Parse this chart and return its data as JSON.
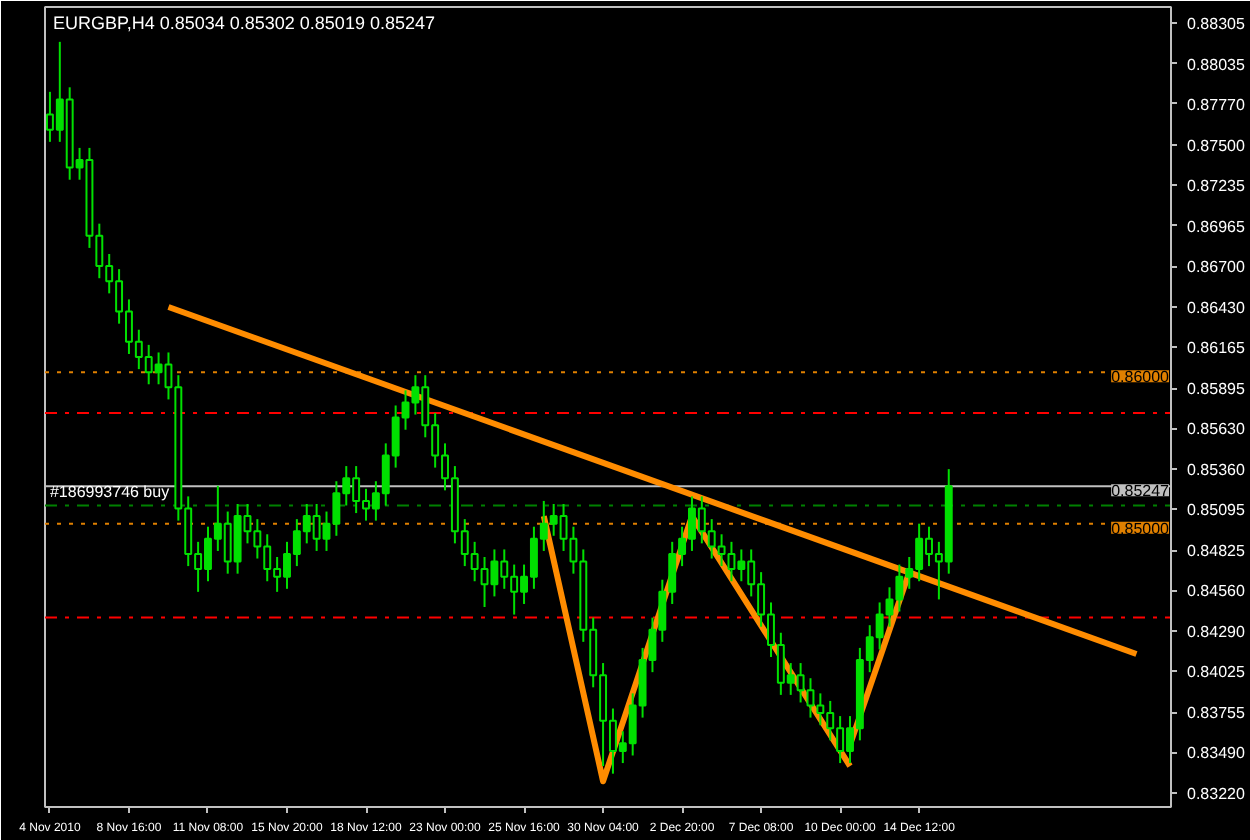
{
  "chart_data": {
    "type": "candlestick",
    "title": "EURGBP,H4  0.85034 0.85302 0.85019 0.85247",
    "color": "#00e000",
    "categories": [
      "4 Nov 2010",
      null,
      null,
      null,
      null,
      null,
      null,
      null,
      "8 Nov 16:00",
      null,
      null,
      null,
      null,
      null,
      null,
      null,
      "11 Nov 08:00",
      null,
      null,
      null,
      null,
      null,
      null,
      null,
      "15 Nov 20:00",
      null,
      null,
      null,
      null,
      null,
      null,
      null,
      "18 Nov 12:00",
      null,
      null,
      null,
      null,
      null,
      null,
      null,
      "23 Nov 00:00",
      null,
      null,
      null,
      null,
      null,
      null,
      null,
      "25 Nov 16:00",
      null,
      null,
      null,
      null,
      null,
      null,
      null,
      "30 Nov 04:00",
      null,
      null,
      null,
      null,
      null,
      null,
      null,
      "2 Dec 20:00",
      null,
      null,
      null,
      null,
      null,
      null,
      null,
      "7 Dec 08:00",
      null,
      null,
      null,
      null,
      null,
      null,
      null,
      "10 Dec 00:00",
      null,
      null,
      null,
      null,
      null,
      null,
      null,
      "14 Dec 12:00",
      null,
      null,
      null,
      null,
      null,
      null,
      null,
      null,
      null,
      null,
      null,
      null,
      null,
      null,
      null,
      null,
      null,
      null,
      null,
      null,
      null,
      null,
      null,
      null,
      null
    ],
    "ohlc": [
      [
        0.877,
        0.8785,
        0.8752,
        0.876
      ],
      [
        0.876,
        0.8818,
        0.8752,
        0.878
      ],
      [
        0.878,
        0.8788,
        0.8727,
        0.8735
      ],
      [
        0.8735,
        0.8748,
        0.8727,
        0.874
      ],
      [
        0.874,
        0.8748,
        0.8682,
        0.869
      ],
      [
        0.869,
        0.8698,
        0.8662,
        0.867
      ],
      [
        0.867,
        0.8678,
        0.8652,
        0.866
      ],
      [
        0.866,
        0.8668,
        0.8632,
        0.864
      ],
      [
        0.864,
        0.8648,
        0.8612,
        0.862
      ],
      [
        0.862,
        0.8628,
        0.8602,
        0.861
      ],
      [
        0.861,
        0.8618,
        0.8592,
        0.86
      ],
      [
        0.86,
        0.8613,
        0.8592,
        0.8605
      ],
      [
        0.8605,
        0.8613,
        0.8582,
        0.859
      ],
      [
        0.859,
        0.8598,
        0.8502,
        0.851
      ],
      [
        0.851,
        0.8518,
        0.8472,
        0.848
      ],
      [
        0.848,
        0.8488,
        0.8455,
        0.847
      ],
      [
        0.847,
        0.8498,
        0.8462,
        0.849
      ],
      [
        0.849,
        0.8525,
        0.8482,
        0.85
      ],
      [
        0.85,
        0.8508,
        0.8467,
        0.8475
      ],
      [
        0.8475,
        0.8513,
        0.8467,
        0.8505
      ],
      [
        0.8505,
        0.8513,
        0.8487,
        0.8495
      ],
      [
        0.8495,
        0.8503,
        0.8477,
        0.8485
      ],
      [
        0.8485,
        0.8493,
        0.8462,
        0.847
      ],
      [
        0.847,
        0.8478,
        0.8455,
        0.8465
      ],
      [
        0.8465,
        0.8488,
        0.8457,
        0.848
      ],
      [
        0.848,
        0.8503,
        0.8472,
        0.8495
      ],
      [
        0.8495,
        0.8513,
        0.8487,
        0.8505
      ],
      [
        0.8505,
        0.8513,
        0.8482,
        0.849
      ],
      [
        0.849,
        0.8508,
        0.8482,
        0.85
      ],
      [
        0.85,
        0.8528,
        0.8492,
        0.852
      ],
      [
        0.852,
        0.8538,
        0.8512,
        0.853
      ],
      [
        0.853,
        0.8538,
        0.8507,
        0.8515
      ],
      [
        0.8515,
        0.8523,
        0.8502,
        0.851
      ],
      [
        0.851,
        0.8528,
        0.8502,
        0.852
      ],
      [
        0.852,
        0.8553,
        0.8512,
        0.8545
      ],
      [
        0.8545,
        0.8578,
        0.8537,
        0.857
      ],
      [
        0.857,
        0.8588,
        0.8562,
        0.858
      ],
      [
        0.858,
        0.8598,
        0.8572,
        0.859
      ],
      [
        0.859,
        0.8598,
        0.8557,
        0.8565
      ],
      [
        0.8565,
        0.8573,
        0.8537,
        0.8545
      ],
      [
        0.8545,
        0.8553,
        0.8522,
        0.853
      ],
      [
        0.853,
        0.8538,
        0.8487,
        0.8495
      ],
      [
        0.8495,
        0.8503,
        0.8472,
        0.848
      ],
      [
        0.848,
        0.8488,
        0.8462,
        0.847
      ],
      [
        0.847,
        0.8478,
        0.8445,
        0.846
      ],
      [
        0.846,
        0.8483,
        0.8452,
        0.8475
      ],
      [
        0.8475,
        0.8483,
        0.8457,
        0.8465
      ],
      [
        0.8465,
        0.8473,
        0.844,
        0.8455
      ],
      [
        0.8455,
        0.8473,
        0.8447,
        0.8465
      ],
      [
        0.8465,
        0.8498,
        0.8457,
        0.849
      ],
      [
        0.849,
        0.8515,
        0.8482,
        0.85
      ],
      [
        0.85,
        0.8513,
        0.8492,
        0.8505
      ],
      [
        0.8505,
        0.8513,
        0.8482,
        0.849
      ],
      [
        0.849,
        0.8498,
        0.8467,
        0.8475
      ],
      [
        0.8475,
        0.8483,
        0.8422,
        0.843
      ],
      [
        0.843,
        0.8438,
        0.8392,
        0.84
      ],
      [
        0.84,
        0.8408,
        0.834,
        0.837
      ],
      [
        0.837,
        0.8378,
        0.8335,
        0.835
      ],
      [
        0.835,
        0.8363,
        0.8342,
        0.8355
      ],
      [
        0.8355,
        0.8388,
        0.8347,
        0.838
      ],
      [
        0.838,
        0.8418,
        0.8372,
        0.841
      ],
      [
        0.841,
        0.8438,
        0.8402,
        0.843
      ],
      [
        0.843,
        0.8463,
        0.8422,
        0.8455
      ],
      [
        0.8455,
        0.8488,
        0.8447,
        0.848
      ],
      [
        0.848,
        0.8498,
        0.8472,
        0.849
      ],
      [
        0.849,
        0.8518,
        0.8482,
        0.851
      ],
      [
        0.851,
        0.8518,
        0.8487,
        0.8495
      ],
      [
        0.8495,
        0.8503,
        0.8477,
        0.8485
      ],
      [
        0.8485,
        0.8493,
        0.8472,
        0.848
      ],
      [
        0.848,
        0.8488,
        0.8462,
        0.847
      ],
      [
        0.847,
        0.8483,
        0.8462,
        0.8475
      ],
      [
        0.8475,
        0.8483,
        0.8452,
        0.846
      ],
      [
        0.846,
        0.8468,
        0.8432,
        0.844
      ],
      [
        0.844,
        0.8448,
        0.8412,
        0.842
      ],
      [
        0.842,
        0.8428,
        0.8387,
        0.8395
      ],
      [
        0.8395,
        0.8408,
        0.8387,
        0.84
      ],
      [
        0.84,
        0.8408,
        0.8382,
        0.839
      ],
      [
        0.839,
        0.8398,
        0.8372,
        0.838
      ],
      [
        0.838,
        0.8388,
        0.8367,
        0.8375
      ],
      [
        0.8375,
        0.8383,
        0.8357,
        0.8365
      ],
      [
        0.8365,
        0.8373,
        0.8342,
        0.835
      ],
      [
        0.835,
        0.8373,
        0.8342,
        0.8365
      ],
      [
        0.8365,
        0.8418,
        0.8357,
        0.841
      ],
      [
        0.841,
        0.8433,
        0.8402,
        0.8425
      ],
      [
        0.8425,
        0.8448,
        0.8417,
        0.844
      ],
      [
        0.844,
        0.8458,
        0.8432,
        0.845
      ],
      [
        0.845,
        0.8473,
        0.8442,
        0.8465
      ],
      [
        0.8465,
        0.8478,
        0.8457,
        0.847
      ],
      [
        0.847,
        0.85,
        0.8462,
        0.849
      ],
      [
        0.849,
        0.8498,
        0.8472,
        0.848
      ],
      [
        0.848,
        0.8488,
        0.845,
        0.8475
      ],
      [
        0.8475,
        0.8536,
        0.8467,
        0.85247
      ],
      null,
      null,
      null,
      null,
      null,
      null,
      null,
      null,
      null,
      null,
      null,
      null,
      null,
      null,
      null,
      null,
      null,
      null,
      null,
      null,
      null,
      null
    ],
    "series": [
      {
        "type": "line",
        "color": "#ff8c00",
        "values": [
          null,
          null,
          null,
          null,
          null,
          null,
          null,
          null,
          null,
          null,
          null,
          null,
          0.8643,
          null,
          null,
          null,
          null,
          null,
          null,
          null,
          null,
          null,
          null,
          null,
          null,
          null,
          null,
          null,
          null,
          null,
          null,
          null,
          null,
          null,
          null,
          null,
          null,
          null,
          null,
          null,
          null,
          null,
          null,
          null,
          null,
          null,
          null,
          null,
          null,
          null,
          null,
          null,
          null,
          null,
          null,
          null,
          null,
          null,
          null,
          null,
          null,
          null,
          null,
          null,
          null,
          null,
          null,
          null,
          null,
          null,
          null,
          null,
          null,
          null,
          null,
          null,
          null,
          null,
          null,
          null,
          null,
          null,
          null,
          null,
          null,
          null,
          null,
          null,
          null,
          null,
          null,
          null,
          null,
          null,
          null,
          null,
          null,
          null,
          null,
          null,
          null,
          null,
          null,
          null,
          null,
          null,
          null,
          null,
          null,
          null,
          0.8414,
          null,
          null,
          null
        ]
      },
      {
        "type": "line",
        "color": "#ff8c00",
        "values": [
          null,
          null,
          null,
          null,
          null,
          null,
          null,
          null,
          null,
          null,
          null,
          null,
          null,
          null,
          null,
          null,
          null,
          null,
          null,
          null,
          null,
          null,
          null,
          null,
          null,
          null,
          null,
          null,
          null,
          null,
          null,
          null,
          null,
          null,
          null,
          null,
          null,
          null,
          null,
          null,
          null,
          null,
          null,
          null,
          null,
          null,
          null,
          null,
          null,
          null,
          0.8505,
          null,
          null,
          null,
          null,
          null,
          0.833,
          null,
          null,
          null,
          null,
          null,
          null,
          null,
          null,
          0.8505,
          null,
          null,
          null,
          null,
          null,
          null,
          null,
          null,
          null,
          null,
          null,
          null,
          null,
          null,
          null,
          0.834,
          null,
          null,
          null,
          null,
          null,
          null,
          null,
          null,
          null,
          null,
          null,
          null,
          null,
          null,
          null,
          null,
          null,
          null,
          null,
          null,
          null,
          null,
          null,
          null,
          null,
          null,
          null,
          null,
          null,
          null,
          null,
          null
        ]
      },
      {
        "type": "line",
        "color": "#ff8c00",
        "values": [
          null,
          null,
          null,
          null,
          null,
          null,
          null,
          null,
          null,
          null,
          null,
          null,
          null,
          null,
          null,
          null,
          null,
          null,
          null,
          null,
          null,
          null,
          null,
          null,
          null,
          null,
          null,
          null,
          null,
          null,
          null,
          null,
          null,
          null,
          null,
          null,
          null,
          null,
          null,
          null,
          null,
          null,
          null,
          null,
          null,
          null,
          null,
          null,
          null,
          null,
          null,
          null,
          null,
          null,
          null,
          null,
          null,
          null,
          null,
          null,
          null,
          null,
          null,
          null,
          null,
          null,
          null,
          null,
          null,
          null,
          null,
          null,
          null,
          null,
          null,
          null,
          null,
          null,
          null,
          null,
          null,
          0.8354,
          null,
          null,
          null,
          null,
          null,
          0.8468,
          null,
          null,
          null,
          null,
          null,
          null,
          null,
          null,
          null,
          null,
          null,
          null,
          null,
          null,
          null,
          null,
          null,
          null,
          null,
          null,
          null,
          null,
          null,
          null,
          null,
          null
        ]
      }
    ],
    "ylim": [
      0.8313,
      0.8841
    ],
    "yticks": [
      0.88305,
      0.88035,
      {
        "value": 0.8777,
        "label": "0.87770"
      },
      {
        "value": 0.875,
        "label": "0.87500"
      },
      0.87235,
      0.86965,
      {
        "value": 0.867,
        "label": "0.86700"
      },
      {
        "value": 0.8643,
        "label": "0.86430"
      },
      0.86165,
      0.85895,
      {
        "value": 0.8563,
        "label": "0.85630"
      },
      {
        "value": 0.8536,
        "label": "0.85360"
      },
      0.85095,
      0.84825,
      {
        "value": 0.8456,
        "label": "0.84560"
      },
      {
        "value": 0.8429,
        "label": "0.84290"
      },
      0.84025,
      0.83755,
      {
        "value": 0.8349,
        "label": "0.83490"
      },
      {
        "value": 0.8322,
        "label": "0.83220"
      }
    ],
    "ref_lines": [
      {
        "axis": "y",
        "value": 0.86,
        "label": "0.86000",
        "color": "#e08000",
        "line_style": "dotted"
      },
      {
        "axis": "y",
        "value": 0.8573,
        "color": "#ff0000",
        "line_style": "dashed"
      },
      {
        "axis": "y",
        "value": 0.85247,
        "label": "0.85247",
        "color": "#c0c0c0",
        "line_style": "solid"
      },
      {
        "axis": "y",
        "value": 0.8512,
        "color": "#008000",
        "line_style": "dashed"
      },
      {
        "axis": "y",
        "value": 0.85,
        "label": "0.85000",
        "color": "#e08000",
        "line_style": "dotted"
      },
      {
        "axis": "y",
        "value": 0.8438,
        "color": "#ff0000",
        "line_style": "dashed"
      }
    ],
    "annotations": [
      {
        "text": "#186993746 buy",
        "x": "4 Nov 2010",
        "y": 0.8512
      }
    ],
    "grid": false
  }
}
